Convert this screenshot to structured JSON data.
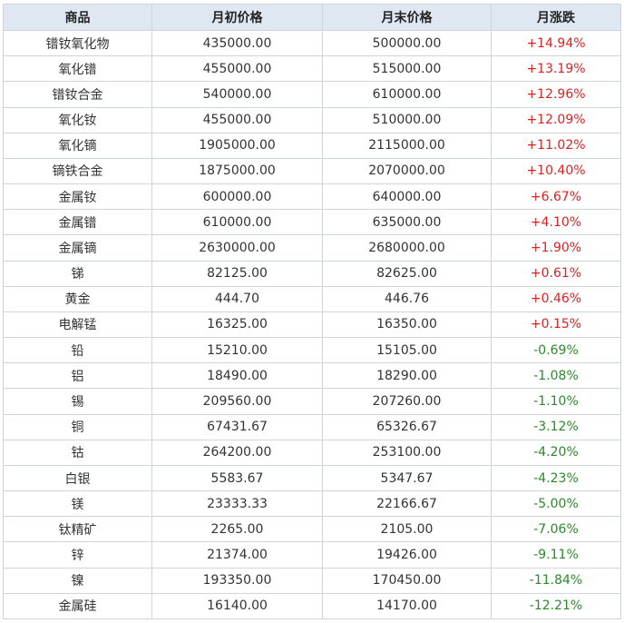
{
  "colors": {
    "header_bg": "#dfe7f2",
    "border": "#cfd4dc",
    "up": "#e02020",
    "down": "#2a8a2a"
  },
  "table": {
    "headers": [
      "商品",
      "月初价格",
      "月末价格",
      "月涨跌"
    ],
    "rows": [
      {
        "name": "镨钕氧化物",
        "start": "435000.00",
        "end": "500000.00",
        "change": "+14.94%",
        "dir": "up"
      },
      {
        "name": "氧化镨",
        "start": "455000.00",
        "end": "515000.00",
        "change": "+13.19%",
        "dir": "up"
      },
      {
        "name": "镨钕合金",
        "start": "540000.00",
        "end": "610000.00",
        "change": "+12.96%",
        "dir": "up"
      },
      {
        "name": "氧化钕",
        "start": "455000.00",
        "end": "510000.00",
        "change": "+12.09%",
        "dir": "up"
      },
      {
        "name": "氧化镝",
        "start": "1905000.00",
        "end": "2115000.00",
        "change": "+11.02%",
        "dir": "up"
      },
      {
        "name": "镝铁合金",
        "start": "1875000.00",
        "end": "2070000.00",
        "change": "+10.40%",
        "dir": "up"
      },
      {
        "name": "金属钕",
        "start": "600000.00",
        "end": "640000.00",
        "change": "+6.67%",
        "dir": "up"
      },
      {
        "name": "金属镨",
        "start": "610000.00",
        "end": "635000.00",
        "change": "+4.10%",
        "dir": "up"
      },
      {
        "name": "金属镝",
        "start": "2630000.00",
        "end": "2680000.00",
        "change": "+1.90%",
        "dir": "up"
      },
      {
        "name": "锑",
        "start": "82125.00",
        "end": "82625.00",
        "change": "+0.61%",
        "dir": "up"
      },
      {
        "name": "黄金",
        "start": "444.70",
        "end": "446.76",
        "change": "+0.46%",
        "dir": "up"
      },
      {
        "name": "电解锰",
        "start": "16325.00",
        "end": "16350.00",
        "change": "+0.15%",
        "dir": "up"
      },
      {
        "name": "铅",
        "start": "15210.00",
        "end": "15105.00",
        "change": "-0.69%",
        "dir": "down"
      },
      {
        "name": "铝",
        "start": "18490.00",
        "end": "18290.00",
        "change": "-1.08%",
        "dir": "down"
      },
      {
        "name": "锡",
        "start": "209560.00",
        "end": "207260.00",
        "change": "-1.10%",
        "dir": "down"
      },
      {
        "name": "铜",
        "start": "67431.67",
        "end": "65326.67",
        "change": "-3.12%",
        "dir": "down"
      },
      {
        "name": "钴",
        "start": "264200.00",
        "end": "253100.00",
        "change": "-4.20%",
        "dir": "down"
      },
      {
        "name": "白银",
        "start": "5583.67",
        "end": "5347.67",
        "change": "-4.23%",
        "dir": "down"
      },
      {
        "name": "镁",
        "start": "23333.33",
        "end": "22166.67",
        "change": "-5.00%",
        "dir": "down"
      },
      {
        "name": "钛精矿",
        "start": "2265.00",
        "end": "2105.00",
        "change": "-7.06%",
        "dir": "down"
      },
      {
        "name": "锌",
        "start": "21374.00",
        "end": "19426.00",
        "change": "-9.11%",
        "dir": "down"
      },
      {
        "name": "镍",
        "start": "193350.00",
        "end": "170450.00",
        "change": "-11.84%",
        "dir": "down"
      },
      {
        "name": "金属硅",
        "start": "16140.00",
        "end": "14170.00",
        "change": "-12.21%",
        "dir": "down"
      }
    ]
  }
}
